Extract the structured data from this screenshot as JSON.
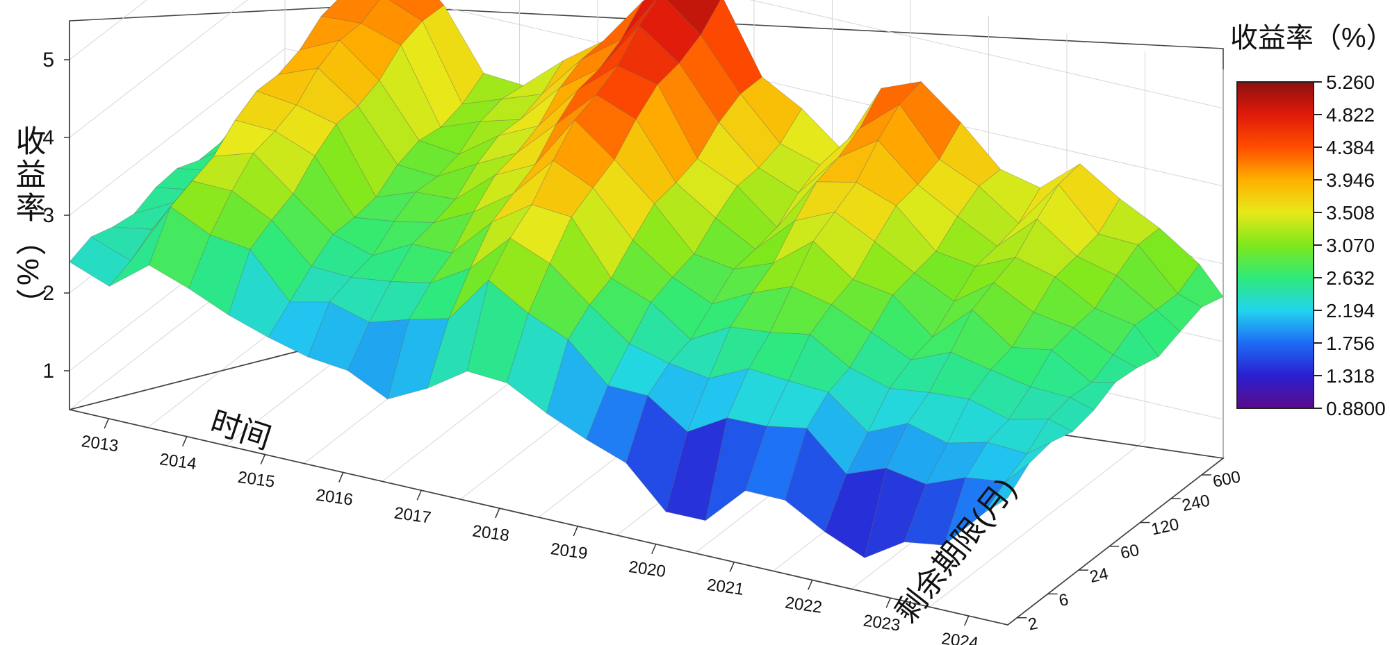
{
  "chart_data": {
    "type": "surface3d",
    "zlabel": "收益率（%）",
    "xlabel": "时间",
    "ylabel": "剩余期限(月)",
    "colorbar_title": "收益率（%）",
    "x_ticks": [
      "2013",
      "2014",
      "2015",
      "2016",
      "2017",
      "2018",
      "2019",
      "2020",
      "2021",
      "2022",
      "2023",
      "2024"
    ],
    "y_ticks": [
      "2",
      "6",
      "24",
      "60",
      "120",
      "240",
      "600"
    ],
    "z_ticks": [
      "1",
      "2",
      "3",
      "4",
      "5"
    ],
    "zlim": [
      0.5,
      5.5
    ],
    "colorbar_ticks": [
      "5.260",
      "4.822",
      "4.384",
      "3.946",
      "3.508",
      "3.070",
      "2.632",
      "2.194",
      "1.756",
      "1.318",
      "0.8800"
    ],
    "colorbar_range": [
      0.88,
      5.26
    ],
    "colormap": [
      "#5b0a8a",
      "#2a1fd0",
      "#1e6cf5",
      "#22d4ee",
      "#2eea7a",
      "#7ee81c",
      "#e8e81a",
      "#ffb000",
      "#ff4d00",
      "#e11a0a",
      "#8b1010"
    ],
    "grid": true,
    "surface_profile": {
      "x_years": [
        2012.5,
        2013.0,
        2013.5,
        2014.0,
        2014.5,
        2015.0,
        2015.5,
        2016.0,
        2016.5,
        2017.0,
        2017.5,
        2018.0,
        2018.5,
        2019.0,
        2019.5,
        2020.0,
        2020.5,
        2021.0,
        2021.5,
        2022.0,
        2022.5,
        2023.0,
        2023.5,
        2024.0,
        2024.3
      ],
      "long_term_yield": [
        2.5,
        2.9,
        4.2,
        4.4,
        4.1,
        3.2,
        3.3,
        3.6,
        4.1,
        4.6,
        5.2,
        4.9,
        4.1,
        3.7,
        3.4,
        4.2,
        4.5,
        4.0,
        3.6,
        3.4,
        3.9,
        3.5,
        3.3,
        2.9,
        2.6
      ],
      "short_term_yield": [
        2.4,
        2.2,
        2.6,
        2.4,
        2.2,
        2.0,
        1.9,
        1.8,
        1.6,
        1.8,
        2.2,
        2.1,
        1.9,
        1.6,
        1.5,
        0.9,
        1.0,
        1.4,
        1.5,
        1.1,
        1.0,
        1.2,
        1.4,
        1.8,
        2.2
      ]
    }
  }
}
